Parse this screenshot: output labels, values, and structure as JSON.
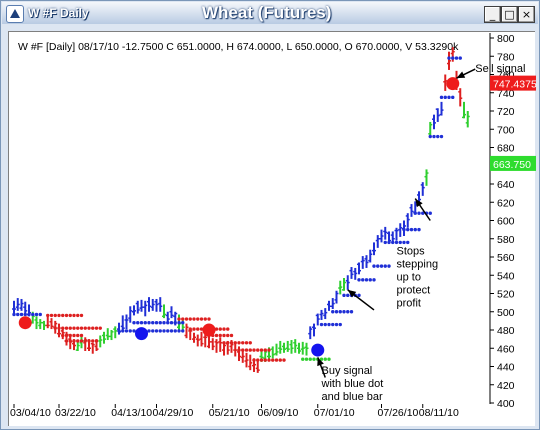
{
  "window": {
    "caption": "W #F Daily",
    "minimize_glyph": "_",
    "maximize_glyph": "□",
    "close_glyph": "×"
  },
  "chart_data": {
    "type": "bar",
    "title": "Wheat (Futures)",
    "info_line": "W #F [Daily] 08/17/10 -12.7500 C 651.0000, H 674.0000, L 650.0000, O 670.0000, V 53.3290k",
    "ylim": [
      400,
      800
    ],
    "yticks": [
      400,
      420,
      440,
      460,
      480,
      500,
      520,
      540,
      560,
      580,
      600,
      620,
      640,
      660,
      680,
      700,
      720,
      740,
      760,
      780,
      800
    ],
    "xticks": [
      "03/04/10",
      "03/22/10",
      "04/13/10",
      "04/29/10",
      "05/21/10",
      "06/09/10",
      "07/01/10",
      "07/26/10",
      "08/11/10"
    ],
    "xtick_index": [
      0,
      12,
      27,
      38,
      53,
      66,
      81,
      98,
      109
    ],
    "ohlc_colors": [
      "#1f2fd6",
      "#1f2fd6",
      "#1f2fd6",
      "#1f2fd6",
      "#1f2fd6",
      "#2fcf2f",
      "#2fcf2f",
      "#2fcf2f",
      "#2fcf2f",
      "#dd2020",
      "#dd2020",
      "#dd2020",
      "#dd2020",
      "#dd2020",
      "#dd2020",
      "#dd2020",
      "#dd2020",
      "#2fcf2f",
      "#2fcf2f",
      "#dd2020",
      "#dd2020",
      "#dd2020",
      "#dd2020",
      "#2fcf2f",
      "#2fcf2f",
      "#2fcf2f",
      "#2fcf2f",
      "#2fcf2f",
      "#1f2fd6",
      "#1f2fd6",
      "#1f2fd6",
      "#1f2fd6",
      "#1f2fd6",
      "#1f2fd6",
      "#1f2fd6",
      "#1f2fd6",
      "#1f2fd6",
      "#1f2fd6",
      "#1f2fd6",
      "#1f2fd6",
      "#2fcf2f",
      "#1f2fd6",
      "#1f2fd6",
      "#1f2fd6",
      "#2fcf2f",
      "#2fcf2f",
      "#dd2020",
      "#dd2020",
      "#dd2020",
      "#dd2020",
      "#dd2020",
      "#dd2020",
      "#dd2020",
      "#dd2020",
      "#dd2020",
      "#dd2020",
      "#dd2020",
      "#dd2020",
      "#dd2020",
      "#dd2020",
      "#dd2020",
      "#dd2020",
      "#dd2020",
      "#dd2020",
      "#dd2020",
      "#dd2020",
      "#2fcf2f",
      "#2fcf2f",
      "#2fcf2f",
      "#2fcf2f",
      "#2fcf2f",
      "#2fcf2f",
      "#2fcf2f",
      "#2fcf2f",
      "#2fcf2f",
      "#2fcf2f",
      "#2fcf2f",
      "#2fcf2f",
      "#2fcf2f",
      "#1f2fd6",
      "#1f2fd6",
      "#1f2fd6",
      "#1f2fd6",
      "#1f2fd6",
      "#1f2fd6",
      "#1f2fd6",
      "#1f2fd6",
      "#2fcf2f",
      "#2fcf2f",
      "#1f2fd6",
      "#1f2fd6",
      "#1f2fd6",
      "#1f2fd6",
      "#1f2fd6",
      "#1f2fd6",
      "#1f2fd6",
      "#1f2fd6",
      "#1f2fd6",
      "#1f2fd6",
      "#1f2fd6",
      "#1f2fd6",
      "#1f2fd6",
      "#1f2fd6",
      "#1f2fd6",
      "#1f2fd6",
      "#1f2fd6",
      "#1f2fd6",
      "#1f2fd6",
      "#1f2fd6",
      "#1f2fd6",
      "#2fcf2f",
      "#2fcf2f",
      "#1f2fd6",
      "#1f2fd6",
      "#1f2fd6",
      "#dd2020",
      "#dd2020",
      "#dd2020",
      "#dd2020",
      "#dd2020",
      "#2fcf2f",
      "#2fcf2f"
    ],
    "high": [
      512,
      515,
      514,
      511,
      508,
      500,
      495,
      492,
      490,
      495,
      493,
      490,
      487,
      482,
      478,
      474,
      470,
      468,
      474,
      472,
      470,
      466,
      470,
      474,
      478,
      482,
      480,
      484,
      488,
      496,
      497,
      506,
      507,
      512,
      513,
      512,
      516,
      514,
      514,
      516,
      508,
      500,
      506,
      500,
      497,
      492,
      487,
      482,
      477,
      475,
      478,
      475,
      474,
      471,
      470,
      472,
      466,
      468,
      469,
      466,
      462,
      458,
      455,
      453,
      449,
      447,
      458,
      458,
      461,
      462,
      465,
      468,
      466,
      468,
      469,
      470,
      466,
      467,
      466,
      484,
      487,
      498,
      502,
      504,
      512,
      515,
      523,
      534,
      537,
      540,
      549,
      548,
      554,
      561,
      562,
      568,
      576,
      584,
      590,
      593,
      588,
      588,
      592,
      597,
      600,
      608,
      618,
      621,
      632,
      642,
      656,
      708,
      716,
      723,
      730,
      760,
      785,
      790,
      764,
      745,
      730,
      720,
      742,
      728,
      712
    ],
    "low": [
      496,
      501,
      501,
      496,
      495,
      487,
      481,
      481,
      480,
      482,
      481,
      476,
      472,
      470,
      463,
      459,
      458,
      457,
      460,
      457,
      457,
      454,
      457,
      461,
      465,
      469,
      469,
      471,
      475,
      478,
      481,
      488,
      496,
      498,
      500,
      495,
      500,
      501,
      500,
      500,
      493,
      489,
      493,
      485,
      480,
      479,
      471,
      469,
      466,
      462,
      462,
      461,
      460,
      458,
      455,
      456,
      452,
      453,
      455,
      451,
      446,
      444,
      439,
      436,
      434,
      433,
      445,
      445,
      447,
      449,
      452,
      454,
      455,
      456,
      454,
      455,
      454,
      453,
      452,
      470,
      473,
      485,
      491,
      492,
      501,
      503,
      509,
      519,
      523,
      524,
      536,
      535,
      541,
      547,
      548,
      554,
      562,
      570,
      576,
      579,
      575,
      575,
      578,
      582,
      583,
      592,
      604,
      608,
      619,
      627,
      638,
      693,
      700,
      708,
      715,
      742,
      765,
      774,
      743,
      725,
      712,
      702,
      718,
      707,
      698
    ],
    "open_tick": [
      503,
      505,
      504,
      505,
      497,
      488,
      491,
      485,
      488,
      485,
      489,
      483,
      476,
      479,
      468,
      470,
      465,
      458,
      466,
      466,
      460,
      465,
      462,
      468,
      474,
      474,
      473,
      481,
      481,
      484,
      491,
      493,
      500,
      509,
      504,
      505,
      511,
      505,
      511,
      509,
      495,
      496,
      500,
      495,
      483,
      488,
      474,
      479,
      470,
      470,
      470,
      472,
      462,
      467,
      467,
      467,
      458,
      465,
      462,
      458,
      456,
      450,
      446,
      440,
      441,
      438,
      451,
      449,
      451,
      459,
      454,
      460,
      462,
      460,
      464,
      466,
      460,
      459,
      461,
      476,
      483,
      496,
      497,
      496,
      508,
      506,
      513,
      526,
      524,
      534,
      545,
      544,
      552,
      555,
      558,
      556,
      567,
      578,
      580,
      588,
      586,
      584,
      589,
      590,
      591,
      605,
      614,
      609,
      628,
      639,
      648,
      695,
      711,
      722,
      716,
      752,
      772,
      783,
      747,
      741,
      713,
      707,
      737,
      714,
      711
    ],
    "close_tick": [
      503,
      508,
      509,
      501,
      499,
      495,
      488,
      488,
      485,
      485,
      484,
      487,
      476,
      477,
      475,
      467,
      463,
      463,
      468,
      469,
      460,
      464,
      459,
      469,
      470,
      473,
      478,
      479,
      478,
      482,
      491,
      501,
      501,
      502,
      505,
      507,
      506,
      508,
      508,
      506,
      497,
      492,
      496,
      498,
      487,
      483,
      483,
      479,
      472,
      469,
      465,
      472,
      467,
      462,
      466,
      466,
      463,
      458,
      464,
      458,
      451,
      451,
      447,
      444,
      442,
      436,
      450,
      456,
      451,
      453,
      456,
      459,
      459,
      459,
      460,
      463,
      457,
      460,
      460,
      481,
      482,
      492,
      498,
      499,
      506,
      509,
      520,
      527,
      532,
      532,
      541,
      542,
      545,
      556,
      554,
      563,
      567,
      580,
      583,
      587,
      578,
      580,
      589,
      592,
      594,
      601,
      610,
      617,
      623,
      636,
      652,
      705,
      707,
      715,
      721,
      753,
      775,
      785,
      753,
      734,
      716,
      714,
      723,
      723,
      706
    ],
    "stop_dots": [
      {
        "from": 0,
        "to": 7,
        "price": 497,
        "color": "#1f2fd6"
      },
      {
        "from": 9,
        "to": 18,
        "price": 496,
        "color": "#dd2020"
      },
      {
        "from": 11,
        "to": 23,
        "price": 482,
        "color": "#dd2020"
      },
      {
        "from": 13,
        "to": 18,
        "price": 474,
        "color": "#dd2020"
      },
      {
        "from": 14,
        "to": 22,
        "price": 468,
        "color": "#dd2020"
      },
      {
        "from": 28,
        "to": 45,
        "price": 479,
        "color": "#1f2fd6"
      },
      {
        "from": 32,
        "to": 45,
        "price": 488,
        "color": "#1f2fd6"
      },
      {
        "from": 44,
        "to": 52,
        "price": 492,
        "color": "#dd2020"
      },
      {
        "from": 47,
        "to": 57,
        "price": 481,
        "color": "#dd2020"
      },
      {
        "from": 52,
        "to": 58,
        "price": 474,
        "color": "#dd2020"
      },
      {
        "from": 56,
        "to": 63,
        "price": 466,
        "color": "#dd2020"
      },
      {
        "from": 60,
        "to": 68,
        "price": 458,
        "color": "#dd2020"
      },
      {
        "from": 64,
        "to": 72,
        "price": 447,
        "color": "#dd2020"
      },
      {
        "from": 77,
        "to": 84,
        "price": 448,
        "color": "#2fcf2f"
      },
      {
        "from": 82,
        "to": 87,
        "price": 486,
        "color": "#1f2fd6"
      },
      {
        "from": 85,
        "to": 90,
        "price": 500,
        "color": "#1f2fd6"
      },
      {
        "from": 88,
        "to": 92,
        "price": 518,
        "color": "#1f2fd6"
      },
      {
        "from": 92,
        "to": 96,
        "price": 535,
        "color": "#1f2fd6"
      },
      {
        "from": 96,
        "to": 100,
        "price": 550,
        "color": "#1f2fd6"
      },
      {
        "from": 99,
        "to": 105,
        "price": 576,
        "color": "#1f2fd6"
      },
      {
        "from": 104,
        "to": 108,
        "price": 590,
        "color": "#1f2fd6"
      },
      {
        "from": 107,
        "to": 111,
        "price": 608,
        "color": "#1f2fd6"
      },
      {
        "from": 111,
        "to": 114,
        "price": 692,
        "color": "#1f2fd6"
      },
      {
        "from": 114,
        "to": 117,
        "price": 735,
        "color": "#1f2fd6"
      },
      {
        "from": 116,
        "to": 119,
        "price": 778,
        "color": "#1f2fd6"
      }
    ],
    "signal_markers": [
      {
        "index": 3,
        "price": 488,
        "color": "#ee1c1c"
      },
      {
        "index": 34,
        "price": 476,
        "color": "#1414ee"
      },
      {
        "index": 52,
        "price": 480,
        "color": "#ee1c1c"
      },
      {
        "index": 81,
        "price": 458,
        "color": "#1414ee"
      },
      {
        "index": 117,
        "price": 750,
        "color": "#ee1c1c"
      }
    ],
    "price_labels": [
      {
        "text": "747.4375",
        "price": 750,
        "bg": "#ee1c1c",
        "fg": "#ffffff"
      },
      {
        "text": "663.750",
        "price": 662,
        "bg": "#2edc2e",
        "fg": "#ffffff"
      }
    ],
    "annotations": [
      {
        "lines": [
          "Sell signal"
        ],
        "text_index": 123,
        "text_price": 763,
        "arrow_from": [
          123,
          766
        ],
        "arrow_to": [
          118,
          756
        ]
      },
      {
        "lines": [
          "Stops",
          "stepping",
          "up to",
          "protect",
          "profit"
        ],
        "text_index": 102,
        "text_price": 563,
        "arrow_from": [
          111,
          600
        ],
        "arrow_to": [
          107,
          624
        ]
      },
      {
        "lines": [
          "Buy signal",
          "with blue dot",
          "and blue bar"
        ],
        "text_index": 82,
        "text_price": 432,
        "arrow_from": [
          83,
          428
        ],
        "arrow_to": [
          81,
          450
        ]
      }
    ],
    "extra_arrows": [
      {
        "arrow_from": [
          96,
          502
        ],
        "arrow_to": [
          89,
          524
        ]
      }
    ]
  }
}
